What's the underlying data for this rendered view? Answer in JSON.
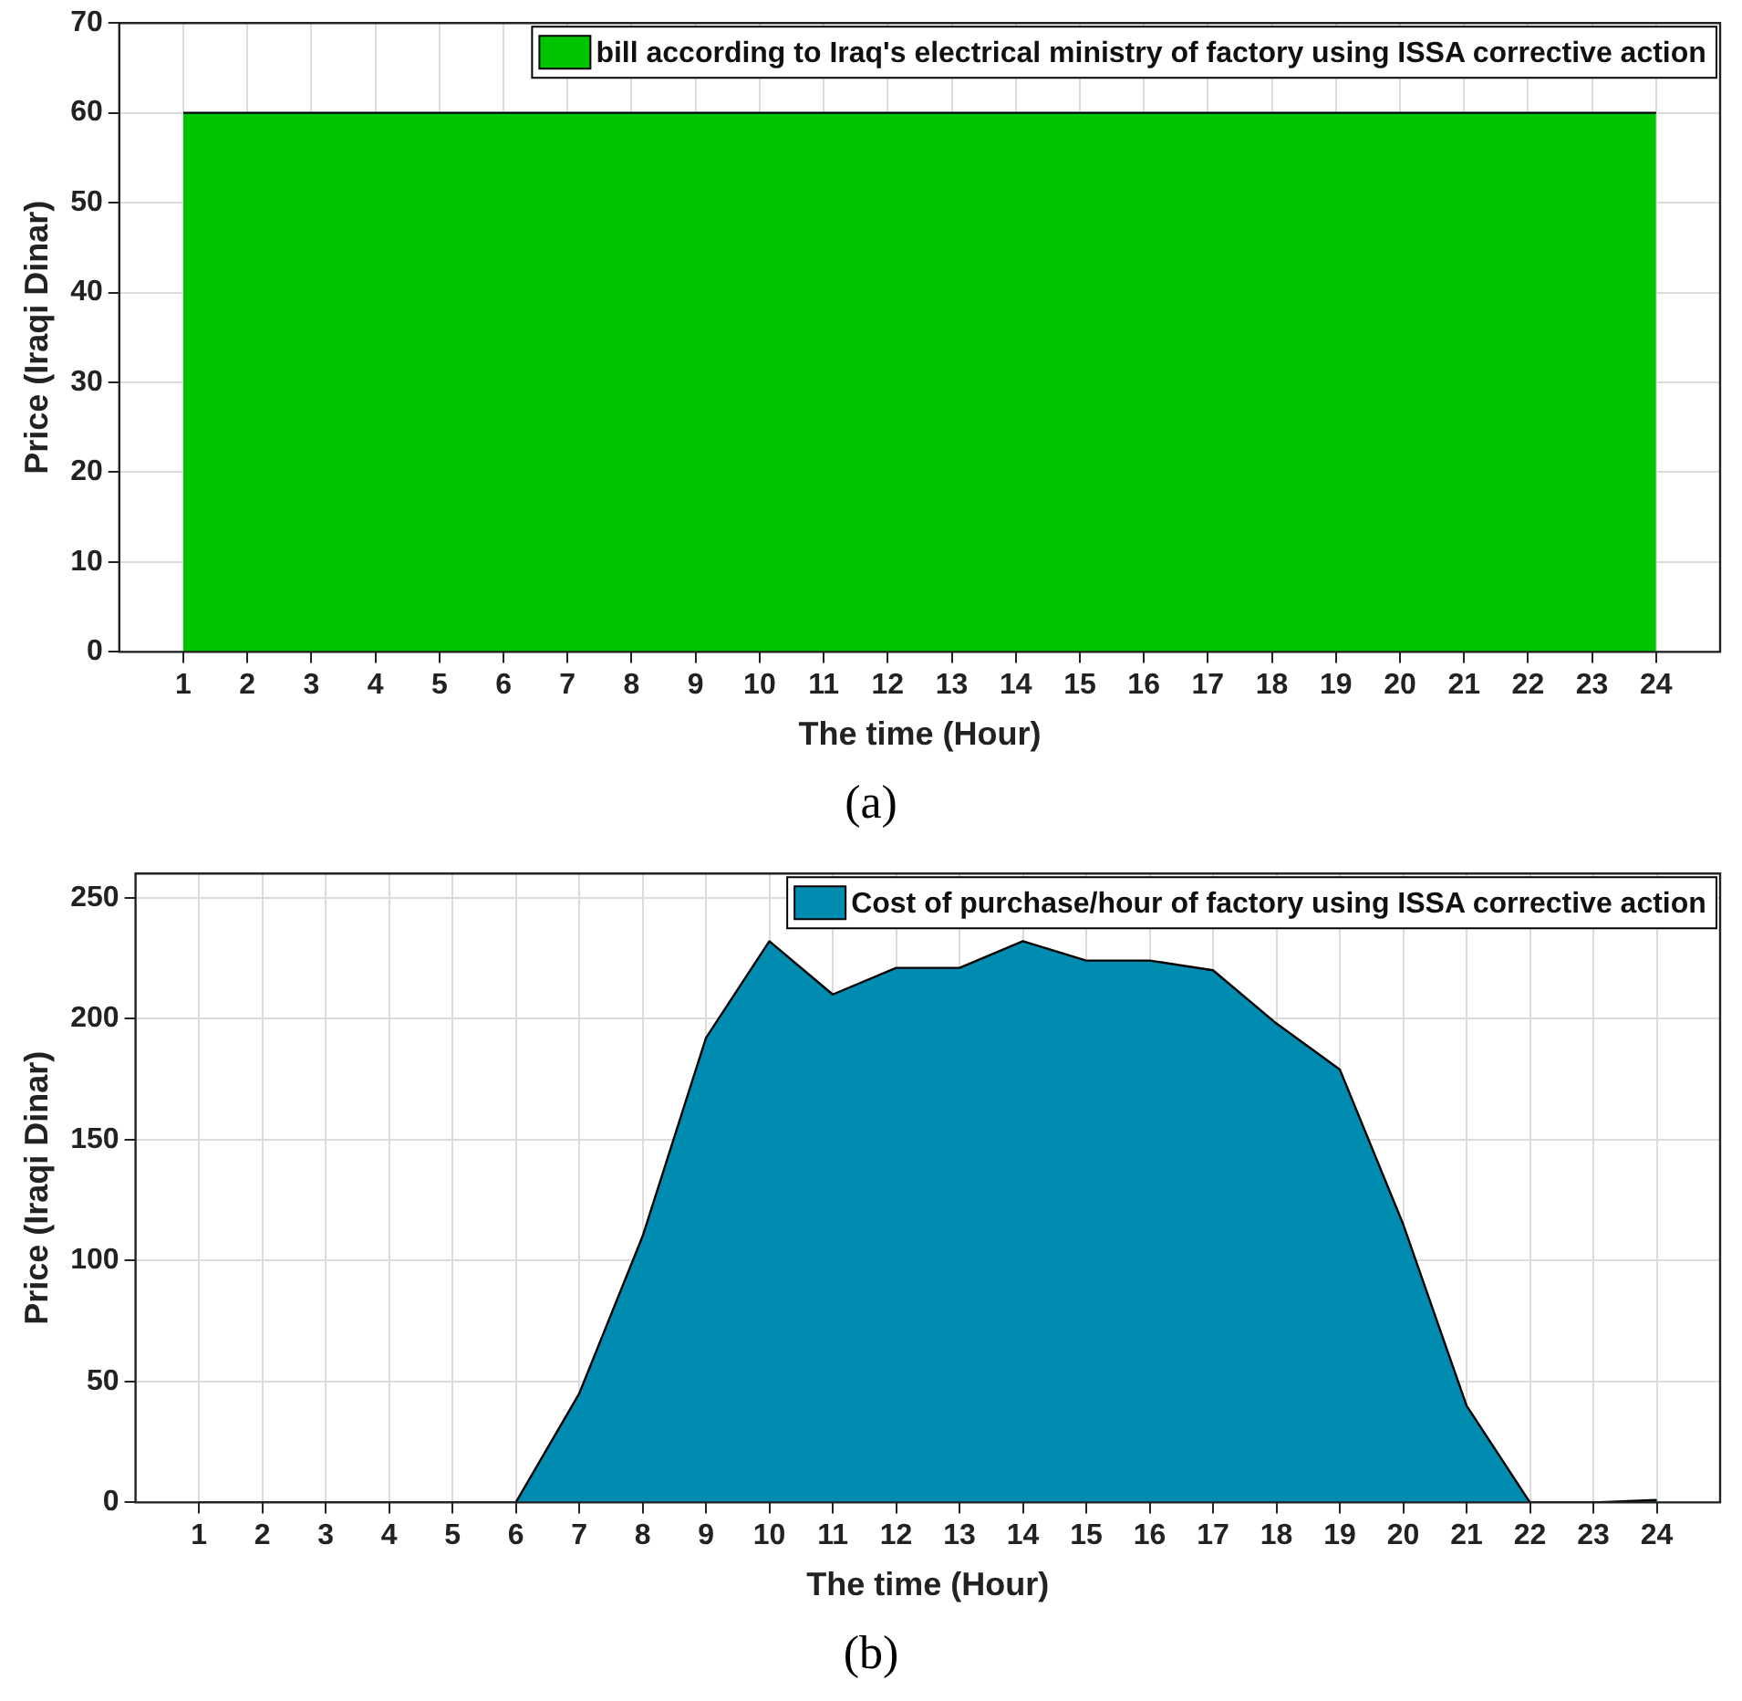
{
  "chart_data": [
    {
      "type": "area",
      "xlabel": "The time (Hour)",
      "ylabel": "Price (Iraqi Dinar)",
      "x": [
        1,
        2,
        3,
        4,
        5,
        6,
        7,
        8,
        9,
        10,
        11,
        12,
        13,
        14,
        15,
        16,
        17,
        18,
        19,
        20,
        21,
        22,
        23,
        24
      ],
      "series": [
        {
          "name": "bill according to Iraq's electrical ministry of factory using ISSA corrective action",
          "color": "#00c400",
          "values": [
            60,
            60,
            60,
            60,
            60,
            60,
            60,
            60,
            60,
            60,
            60,
            60,
            60,
            60,
            60,
            60,
            60,
            60,
            60,
            60,
            60,
            60,
            60,
            60
          ]
        }
      ],
      "xlim": [
        0,
        25
      ],
      "xticks": [
        1,
        2,
        3,
        4,
        5,
        6,
        7,
        8,
        9,
        10,
        11,
        12,
        13,
        14,
        15,
        16,
        17,
        18,
        19,
        20,
        21,
        22,
        23,
        24
      ],
      "ylim": [
        0,
        70
      ],
      "yticks": [
        0,
        10,
        20,
        30,
        40,
        50,
        60,
        70
      ],
      "grid": true,
      "legend": "top right",
      "annotations": [
        "(a)"
      ]
    },
    {
      "type": "area",
      "xlabel": "The time (Hour)",
      "ylabel": "Price (Iraqi Dinar)",
      "x": [
        1,
        2,
        3,
        4,
        5,
        6,
        7,
        8,
        9,
        10,
        11,
        12,
        13,
        14,
        15,
        16,
        17,
        18,
        19,
        20,
        21,
        22,
        23,
        24
      ],
      "series": [
        {
          "name": "Cost of purchase/hour of factory using ISSA corrective action",
          "color": "#008bb0",
          "values": [
            0,
            0,
            0,
            0,
            0,
            0,
            45,
            110,
            192,
            232,
            210,
            221,
            221,
            232,
            224,
            224,
            220,
            198,
            179,
            115,
            40,
            0,
            0,
            1
          ]
        }
      ],
      "xlim": [
        0,
        25
      ],
      "xticks": [
        1,
        2,
        3,
        4,
        5,
        6,
        7,
        8,
        9,
        10,
        11,
        12,
        13,
        14,
        15,
        16,
        17,
        18,
        19,
        20,
        21,
        22,
        23,
        24
      ],
      "ylim": [
        0,
        260
      ],
      "yticks": [
        0,
        50,
        100,
        150,
        200,
        250
      ],
      "grid": true,
      "legend": "top right",
      "annotations": [
        "(b)"
      ]
    }
  ]
}
